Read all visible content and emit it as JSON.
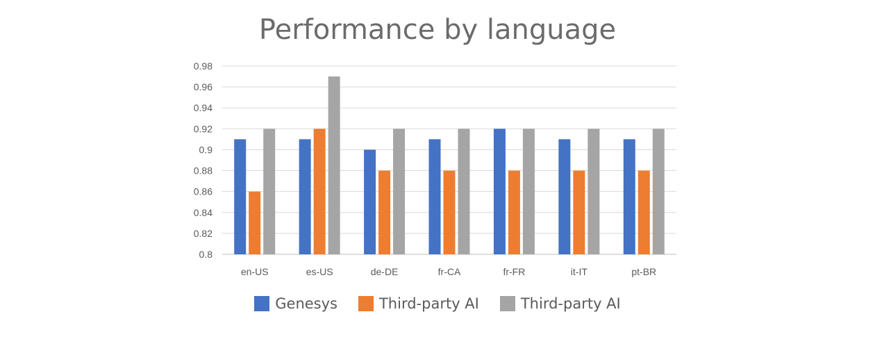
{
  "chart_data": {
    "type": "bar",
    "title": "Performance by language",
    "categories": [
      "en-US",
      "es-US",
      "de-DE",
      "fr-CA",
      "fr-FR",
      "it-IT",
      "pt-BR"
    ],
    "series": [
      {
        "name": "Genesys",
        "color": "#4472c4",
        "values": [
          0.91,
          0.91,
          0.9,
          0.91,
          0.92,
          0.91,
          0.91
        ]
      },
      {
        "name": "Third-party AI",
        "color": "#ed7d31",
        "values": [
          0.86,
          0.92,
          0.88,
          0.88,
          0.88,
          0.88,
          0.88
        ]
      },
      {
        "name": "Third-party AI",
        "color": "#a5a5a5",
        "values": [
          0.92,
          0.97,
          0.92,
          0.92,
          0.92,
          0.92,
          0.92
        ]
      }
    ],
    "ylim": [
      0.8,
      0.98
    ],
    "yticks": [
      "0.98",
      "0.96",
      "0.94",
      "0.92",
      "0.9",
      "0.88",
      "0.86",
      "0.84",
      "0.82",
      "0.8"
    ],
    "xlabel": "",
    "ylabel": "",
    "grid": true,
    "legend_position": "bottom"
  }
}
